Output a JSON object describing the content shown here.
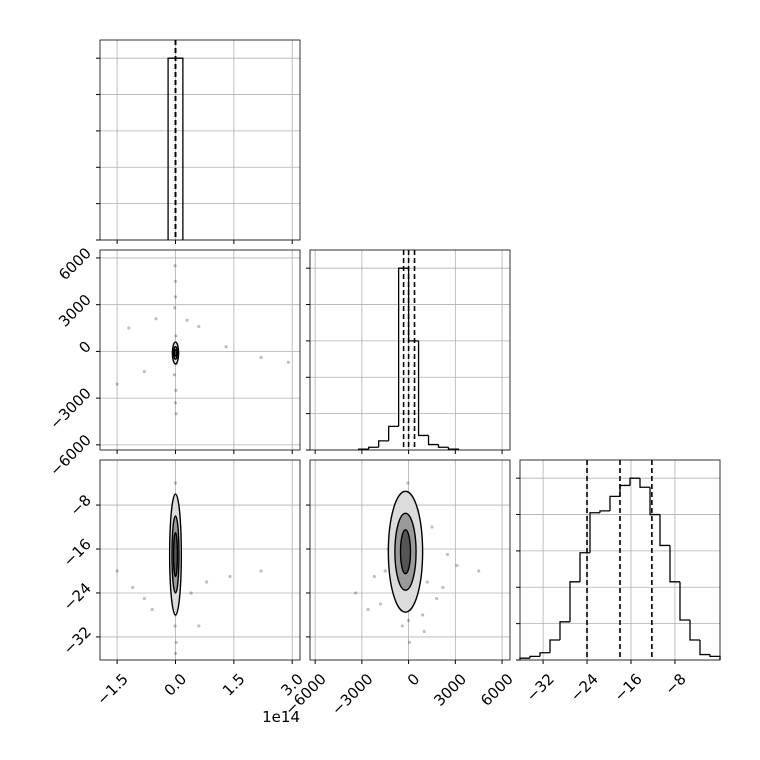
{
  "chart_data": {
    "type": "corner",
    "grid": true,
    "color": "#000000",
    "params": [
      {
        "xlim": [
          -1.94,
          3.2
        ],
        "ticks": [
          {
            "value": -1.5,
            "label": "−1.5"
          },
          {
            "value": 0,
            "label": "0.0"
          },
          1.5,
          {
            "value": 3,
            "label": "3.0"
          }
        ],
        "offset": "1e14"
      },
      {
        "xlim": [
          -6330,
          6510
        ],
        "ticks": [
          {
            "value": -6000,
            "label": "−6000"
          },
          {
            "value": -3000,
            "label": "−3000"
          },
          0,
          3000,
          6000
        ]
      },
      {
        "xlim": [
          -36.2,
          0.2
        ],
        "ticks": [
          {
            "value": -32,
            "label": "−32"
          },
          {
            "value": -24,
            "label": "−24"
          },
          {
            "value": -16,
            "label": "−16"
          },
          {
            "value": -8,
            "label": "−8"
          }
        ]
      }
    ],
    "histograms": [
      {
        "bins": [
          -0.19,
          0.19
        ],
        "counts": [
          1.0
        ],
        "quantiles": [
          0,
          0,
          0
        ],
        "ylim": [
          0,
          1.1
        ],
        "yticks": [
          0,
          0.2,
          0.4,
          0.6,
          0.8,
          1.0
        ]
      },
      {
        "bins": [
          -3200,
          -2560,
          -1920,
          -1280,
          -640,
          0,
          640,
          1280,
          1920,
          2560,
          3200
        ],
        "counts": [
          0.005,
          0.015,
          0.05,
          0.13,
          1.0,
          0.6,
          0.08,
          0.03,
          0.015,
          0.005
        ],
        "quantiles": [
          -320,
          0,
          380
        ],
        "ylim": [
          0,
          1.1
        ],
        "yticks": [
          0,
          0.2,
          0.4,
          0.6,
          0.8,
          1.0
        ]
      },
      {
        "bins": [
          -36.2,
          -34.38,
          -32.56,
          -30.74,
          -28.92,
          -27.1,
          -25.28,
          -23.46,
          -21.64,
          -19.82,
          -18.0,
          -16.18,
          -14.36,
          -12.54,
          -10.72,
          -8.9,
          -7.08,
          -5.26,
          -3.44,
          -1.62,
          0.2
        ],
        "counts": [
          0.01,
          0.02,
          0.04,
          0.11,
          0.21,
          0.43,
          0.59,
          0.81,
          0.82,
          0.9,
          0.96,
          1.0,
          0.95,
          0.8,
          0.63,
          0.43,
          0.22,
          0.11,
          0.03,
          0.02
        ],
        "quantiles": [
          -24,
          -18,
          -12.2
        ],
        "ylim": [
          0,
          1.1
        ],
        "yticks": [
          0,
          0.2,
          0.4,
          0.6,
          0.8,
          1.0
        ]
      }
    ],
    "scatters": [
      {
        "x_param": 0,
        "y_param": 1,
        "x": [
          -1.2,
          0.3,
          2.2,
          -0.8,
          1.3,
          0.0,
          0.02,
          -0.02,
          0.01,
          -0.01,
          0.0,
          0.03,
          2.9,
          -1.5,
          0.6,
          -0.5,
          0.0,
          0.0,
          0.01,
          -0.03
        ],
        "y": [
          1500,
          2000,
          -400,
          -1300,
          300,
          4500,
          -4000,
          2800,
          -2500,
          5500,
          0,
          -800,
          -700,
          -2100,
          1600,
          2100,
          3500,
          -3300,
          1000,
          -1500
        ],
        "contours": [
          {
            "cx": 0,
            "cy": -100,
            "rx": 0.08,
            "ry": 700
          },
          {
            "cx": 0,
            "cy": -100,
            "rx": 0.05,
            "ry": 400
          },
          {
            "cx": 0,
            "cy": -100,
            "rx": 0.03,
            "ry": 200
          }
        ]
      },
      {
        "x_param": 0,
        "y_param": 2,
        "x": [
          -1.5,
          -0.8,
          0.8,
          1.4,
          2.2,
          0.6,
          0.0,
          0.01,
          -0.01,
          0.02,
          -0.02,
          0.0,
          0.03,
          -0.6,
          0.4,
          -1.1,
          0.0,
          0.01,
          -0.03,
          0.02
        ],
        "y": [
          -20,
          -25,
          -22,
          -21,
          -20,
          -30,
          -4,
          -8,
          -30,
          -33,
          -12,
          -28,
          -22,
          -27,
          -24,
          -23,
          -35,
          -10,
          -18,
          -26
        ],
        "contours": [
          {
            "cx": 0,
            "cy": -17,
            "rx": 0.15,
            "ry": 11
          },
          {
            "cx": 0,
            "cy": -17,
            "rx": 0.09,
            "ry": 7
          },
          {
            "cx": 0,
            "cy": -17,
            "rx": 0.05,
            "ry": 4
          }
        ]
      },
      {
        "x_param": 1,
        "y_param": 2,
        "x": [
          -200,
          300,
          -600,
          500,
          100,
          -900,
          800,
          -300,
          1200,
          -1500,
          0,
          400,
          -100,
          700,
          -700,
          1800,
          -2200,
          2500,
          -400,
          200,
          -1100,
          900,
          600,
          -800,
          1500,
          -1800,
          50,
          -50,
          350,
          -350,
          2200,
          -2600,
          3100,
          -3400,
          1000,
          -1300,
          150,
          250,
          -250,
          4500
        ],
        "y": [
          -16,
          -12,
          -20,
          -24,
          -8,
          -18,
          -14,
          -27,
          -22,
          -20,
          -29,
          -10,
          -6,
          -19,
          -13,
          -25,
          -21,
          -17,
          -30,
          -26,
          -15,
          -28,
          -9,
          -23,
          -12,
          -26,
          -33,
          -4,
          -18,
          -11,
          -23,
          -27,
          -19,
          -24,
          -31,
          -16,
          -21,
          -14,
          -25,
          -20
        ],
        "contours": [
          {
            "cx": -200,
            "cy": -16.5,
            "rx": 1100,
            "ry": 11
          },
          {
            "cx": -200,
            "cy": -16.5,
            "rx": 680,
            "ry": 7
          },
          {
            "cx": -200,
            "cy": -16.5,
            "rx": 320,
            "ry": 4
          }
        ]
      }
    ]
  }
}
